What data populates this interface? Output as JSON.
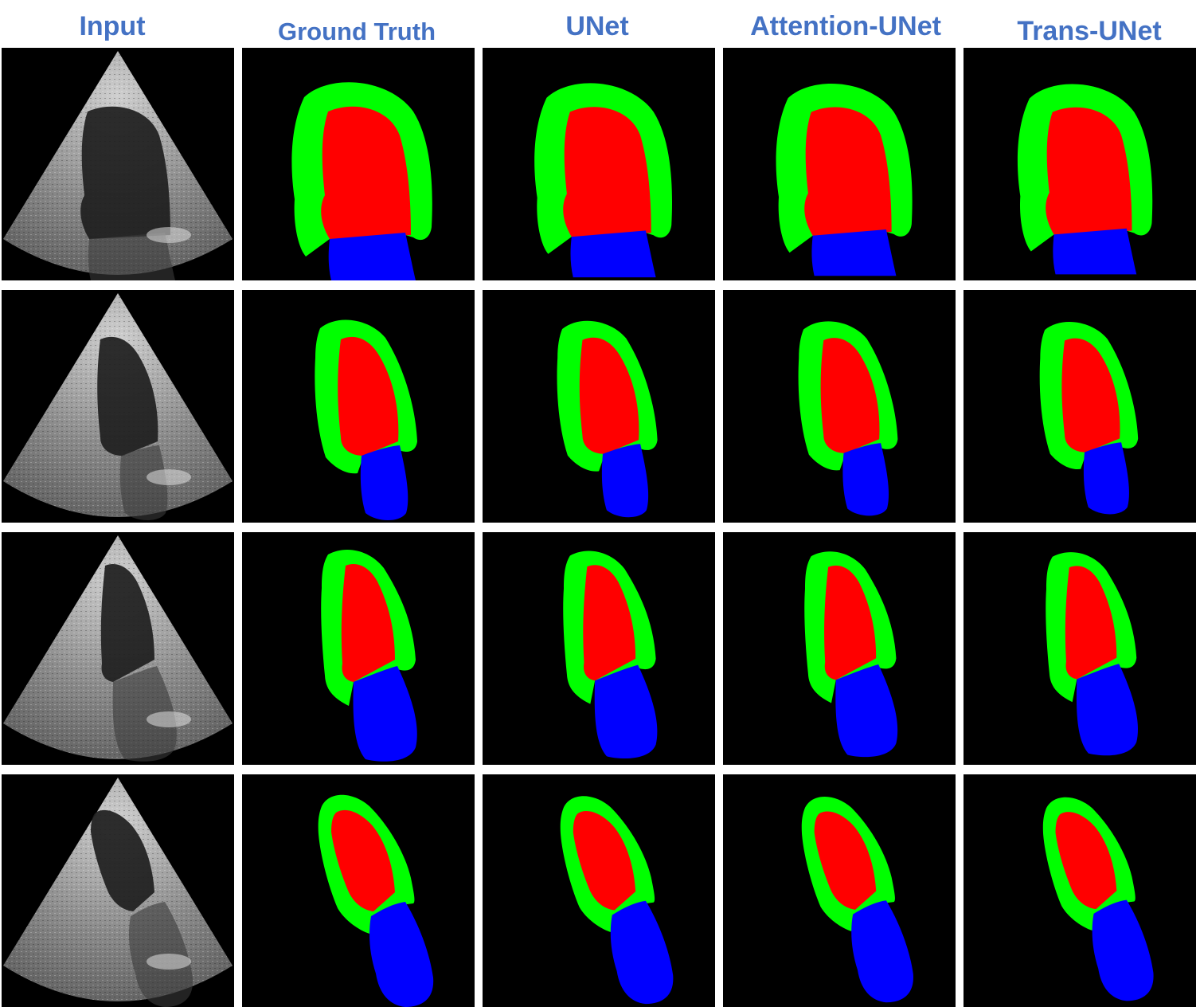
{
  "headers": [
    "Input",
    "Ground Truth",
    "UNet",
    "Attention-UNet",
    "Trans-UNet"
  ],
  "colors": {
    "background": "#000000",
    "myocardium": "#00ff00",
    "cavity": "#ff0000",
    "atrium": "#0000ff",
    "header_text": "#4472c4"
  },
  "rows": [
    {
      "cells": [
        "ultrasound",
        "mask",
        "mask",
        "mask",
        "mask"
      ]
    },
    {
      "cells": [
        "ultrasound",
        "mask",
        "mask",
        "mask",
        "mask"
      ]
    },
    {
      "cells": [
        "ultrasound",
        "mask",
        "mask",
        "mask",
        "mask"
      ]
    },
    {
      "cells": [
        "ultrasound",
        "mask",
        "mask",
        "mask",
        "mask"
      ]
    }
  ]
}
